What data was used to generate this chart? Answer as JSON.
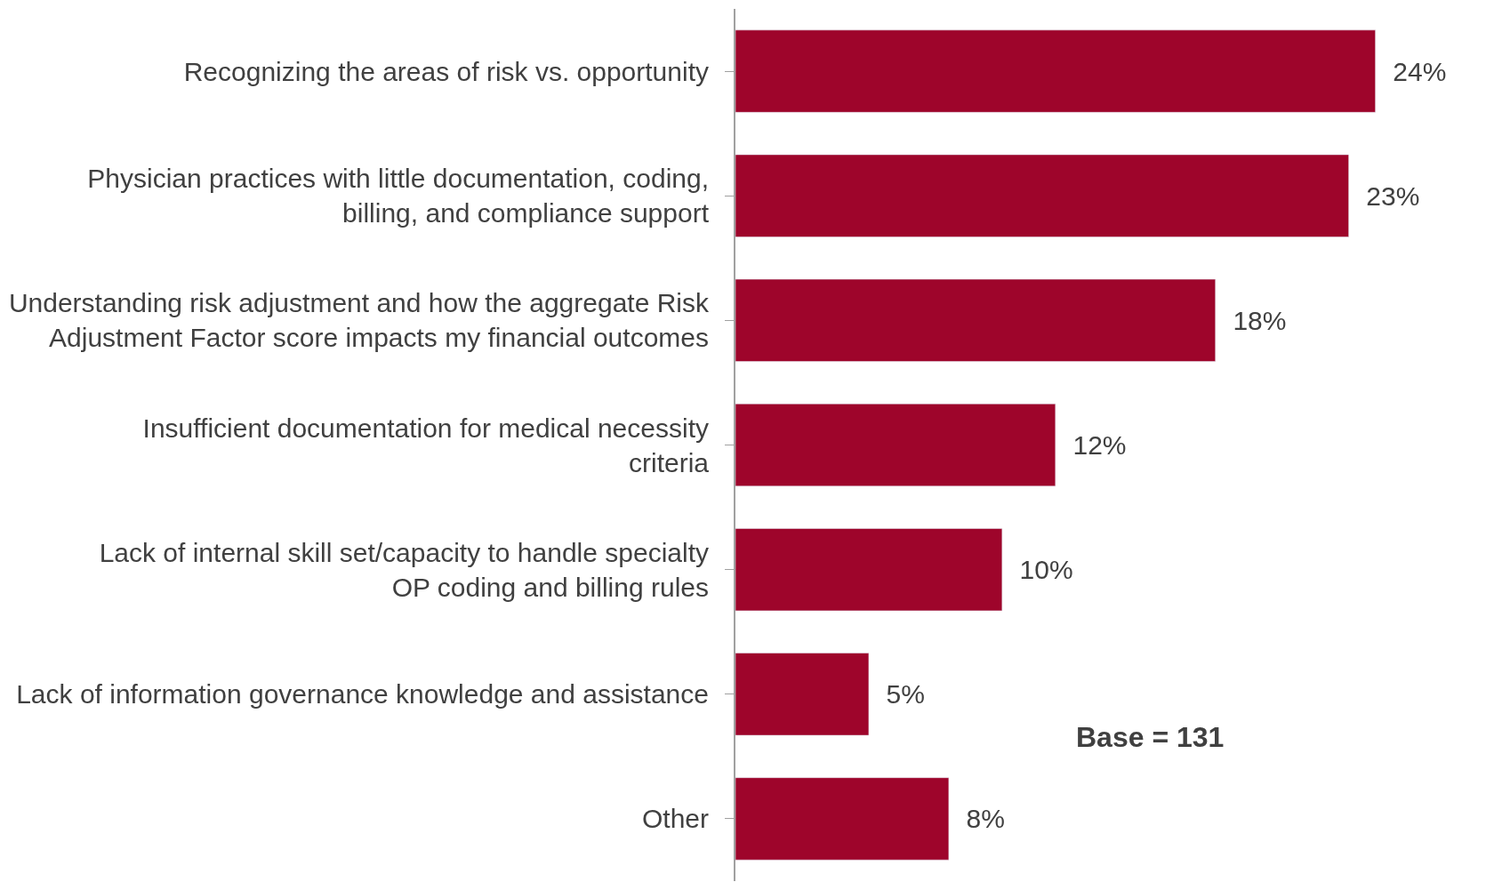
{
  "chart_data": {
    "type": "bar",
    "orientation": "horizontal",
    "categories": [
      "Recognizing the areas of risk vs. opportunity",
      "Physician practices with little documentation, coding, billing, and compliance support",
      "Understanding risk adjustment and how the aggregate Risk Adjustment Factor score impacts my financial outcomes",
      "Insufficient documentation for medical necessity criteria",
      "Lack of internal skill set/capacity to handle specialty OP coding and billing rules",
      "Lack of information governance knowledge and assistance",
      "Other"
    ],
    "values": [
      24,
      23,
      18,
      12,
      10,
      5,
      8
    ],
    "value_labels": [
      "24%",
      "23%",
      "18%",
      "12%",
      "10%",
      "5%",
      "8%"
    ],
    "color": "#9e052b",
    "annotations": [
      "Base = 131"
    ]
  }
}
